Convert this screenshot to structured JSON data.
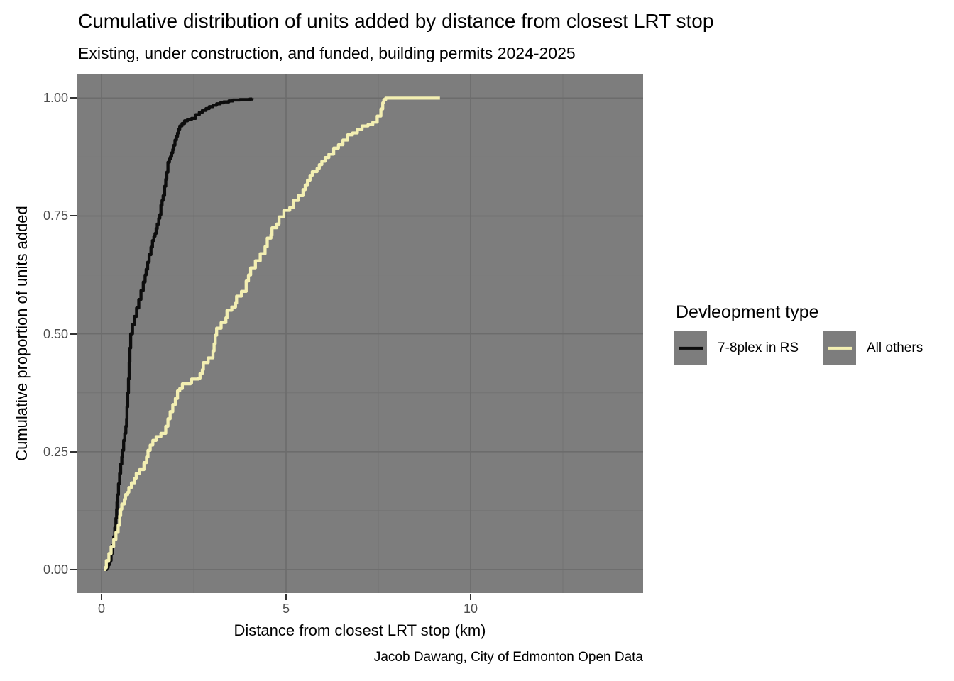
{
  "title": "Cumulative distribution of units added by distance from closest LRT stop",
  "subtitle": "Existing, under construction, and funded, building permits 2024-2025",
  "caption": "Jacob Dawang, City of Edmonton Open Data",
  "x_axis": {
    "label": "Distance from closest LRT stop (km)",
    "ticks": [
      {
        "value": 0,
        "label": "0"
      },
      {
        "value": 5,
        "label": "5"
      },
      {
        "value": 10,
        "label": "10"
      }
    ]
  },
  "y_axis": {
    "label": "Cumulative proportion of units added",
    "ticks": [
      {
        "value": 1.0,
        "label": "1.00"
      },
      {
        "value": 0.75,
        "label": "0.75"
      },
      {
        "value": 0.5,
        "label": "0.50"
      },
      {
        "value": 0.25,
        "label": "0.25"
      },
      {
        "value": 0.0,
        "label": "0.00"
      }
    ]
  },
  "legend": {
    "title": "Devleopment type",
    "items": [
      {
        "label": "7-8plex in RS",
        "color": "#0d0d0d"
      },
      {
        "label": "All others",
        "color": "#f3efb2"
      }
    ]
  },
  "colors": {
    "panel_bg": "#7d7d7d",
    "grid_major": "#6c6c6c",
    "grid_minor": "#747474",
    "axis_text": "#4d4d4d",
    "tick_mark": "#333333",
    "text": "#000000"
  },
  "chart_data": {
    "type": "line",
    "subtype": "ecdf-step",
    "title": "Cumulative distribution of units added by distance from closest LRT stop",
    "subtitle": "Existing, under construction, and funded, building permits 2024-2025",
    "xlabel": "Distance from closest LRT stop (km)",
    "ylabel": "Cumulative proportion of units added",
    "xlim": [
      -0.673,
      14.673
    ],
    "ylim": [
      -0.0498,
      1.0517
    ],
    "grid": {
      "x_major": [
        0,
        5,
        10
      ],
      "x_minor": [
        2.5,
        7.5,
        12.5
      ],
      "y_major": [
        0,
        0.25,
        0.5,
        0.75,
        1.0
      ],
      "y_minor": [
        0.125,
        0.375,
        0.625,
        0.875
      ]
    },
    "legend_position": "right",
    "series": [
      {
        "name": "7-8plex in RS",
        "color": "#0d0d0d",
        "points": [
          [
            0.1,
            0.0
          ],
          [
            0.14,
            0.004
          ],
          [
            0.18,
            0.01
          ],
          [
            0.21,
            0.019
          ],
          [
            0.26,
            0.034
          ],
          [
            0.29,
            0.051
          ],
          [
            0.33,
            0.07
          ],
          [
            0.36,
            0.089
          ],
          [
            0.39,
            0.109
          ],
          [
            0.41,
            0.128
          ],
          [
            0.42,
            0.144
          ],
          [
            0.44,
            0.159
          ],
          [
            0.46,
            0.182
          ],
          [
            0.49,
            0.204
          ],
          [
            0.52,
            0.224
          ],
          [
            0.55,
            0.239
          ],
          [
            0.57,
            0.253
          ],
          [
            0.6,
            0.274
          ],
          [
            0.63,
            0.289
          ],
          [
            0.66,
            0.304
          ],
          [
            0.68,
            0.32
          ],
          [
            0.69,
            0.345
          ],
          [
            0.71,
            0.375
          ],
          [
            0.73,
            0.405
          ],
          [
            0.75,
            0.44
          ],
          [
            0.77,
            0.47
          ],
          [
            0.79,
            0.5
          ],
          [
            0.84,
            0.52
          ],
          [
            0.89,
            0.537
          ],
          [
            0.95,
            0.555
          ],
          [
            1.01,
            0.573
          ],
          [
            1.07,
            0.592
          ],
          [
            1.13,
            0.61
          ],
          [
            1.18,
            0.625
          ],
          [
            1.21,
            0.637
          ],
          [
            1.25,
            0.652
          ],
          [
            1.29,
            0.668
          ],
          [
            1.34,
            0.684
          ],
          [
            1.38,
            0.698
          ],
          [
            1.42,
            0.707
          ],
          [
            1.45,
            0.713
          ],
          [
            1.48,
            0.723
          ],
          [
            1.51,
            0.733
          ],
          [
            1.55,
            0.745
          ],
          [
            1.58,
            0.753
          ],
          [
            1.61,
            0.773
          ],
          [
            1.64,
            0.783
          ],
          [
            1.67,
            0.793
          ],
          [
            1.71,
            0.813
          ],
          [
            1.74,
            0.828
          ],
          [
            1.77,
            0.843
          ],
          [
            1.8,
            0.864
          ],
          [
            1.84,
            0.871
          ],
          [
            1.87,
            0.876
          ],
          [
            1.9,
            0.884
          ],
          [
            1.93,
            0.891
          ],
          [
            1.96,
            0.9
          ],
          [
            1.99,
            0.911
          ],
          [
            2.03,
            0.919
          ],
          [
            2.06,
            0.926
          ],
          [
            2.09,
            0.934
          ],
          [
            2.12,
            0.941
          ],
          [
            2.18,
            0.946
          ],
          [
            2.25,
            0.952
          ],
          [
            2.33,
            0.955
          ],
          [
            2.44,
            0.957
          ],
          [
            2.55,
            0.965
          ],
          [
            2.65,
            0.97
          ],
          [
            2.73,
            0.974
          ],
          [
            2.83,
            0.978
          ],
          [
            2.92,
            0.982
          ],
          [
            3.02,
            0.985
          ],
          [
            3.12,
            0.988
          ],
          [
            3.22,
            0.99
          ],
          [
            3.31,
            0.992
          ],
          [
            3.45,
            0.994
          ],
          [
            3.56,
            0.996
          ],
          [
            3.75,
            0.997
          ],
          [
            4.02,
            0.998
          ],
          [
            4.08,
            1.0
          ]
        ]
      },
      {
        "name": "All others",
        "color": "#f3efb2",
        "points": [
          [
            0.07,
            0.0
          ],
          [
            0.1,
            0.004
          ],
          [
            0.13,
            0.019
          ],
          [
            0.2,
            0.034
          ],
          [
            0.26,
            0.049
          ],
          [
            0.33,
            0.064
          ],
          [
            0.39,
            0.079
          ],
          [
            0.45,
            0.094
          ],
          [
            0.49,
            0.114
          ],
          [
            0.52,
            0.128
          ],
          [
            0.55,
            0.139
          ],
          [
            0.62,
            0.149
          ],
          [
            0.65,
            0.159
          ],
          [
            0.71,
            0.164
          ],
          [
            0.74,
            0.174
          ],
          [
            0.81,
            0.184
          ],
          [
            0.9,
            0.194
          ],
          [
            0.94,
            0.204
          ],
          [
            1.03,
            0.212
          ],
          [
            1.15,
            0.227
          ],
          [
            1.22,
            0.239
          ],
          [
            1.26,
            0.253
          ],
          [
            1.32,
            0.264
          ],
          [
            1.39,
            0.274
          ],
          [
            1.48,
            0.282
          ],
          [
            1.61,
            0.289
          ],
          [
            1.74,
            0.304
          ],
          [
            1.8,
            0.32
          ],
          [
            1.86,
            0.335
          ],
          [
            1.93,
            0.35
          ],
          [
            2.0,
            0.363
          ],
          [
            2.06,
            0.379
          ],
          [
            2.12,
            0.384
          ],
          [
            2.19,
            0.394
          ],
          [
            2.41,
            0.396
          ],
          [
            2.44,
            0.404
          ],
          [
            2.63,
            0.406
          ],
          [
            2.67,
            0.416
          ],
          [
            2.73,
            0.424
          ],
          [
            2.76,
            0.439
          ],
          [
            2.89,
            0.449
          ],
          [
            3.02,
            0.464
          ],
          [
            3.05,
            0.479
          ],
          [
            3.08,
            0.497
          ],
          [
            3.12,
            0.512
          ],
          [
            3.24,
            0.524
          ],
          [
            3.37,
            0.534
          ],
          [
            3.4,
            0.55
          ],
          [
            3.53,
            0.557
          ],
          [
            3.63,
            0.565
          ],
          [
            3.66,
            0.58
          ],
          [
            3.79,
            0.59
          ],
          [
            3.92,
            0.612
          ],
          [
            3.98,
            0.625
          ],
          [
            4.04,
            0.64
          ],
          [
            4.17,
            0.655
          ],
          [
            4.3,
            0.67
          ],
          [
            4.43,
            0.685
          ],
          [
            4.49,
            0.703
          ],
          [
            4.59,
            0.71
          ],
          [
            4.62,
            0.725
          ],
          [
            4.75,
            0.733
          ],
          [
            4.81,
            0.748
          ],
          [
            4.94,
            0.762
          ],
          [
            5.1,
            0.768
          ],
          [
            5.2,
            0.783
          ],
          [
            5.33,
            0.793
          ],
          [
            5.46,
            0.806
          ],
          [
            5.52,
            0.816
          ],
          [
            5.58,
            0.826
          ],
          [
            5.65,
            0.836
          ],
          [
            5.71,
            0.844
          ],
          [
            5.84,
            0.851
          ],
          [
            5.9,
            0.859
          ],
          [
            5.97,
            0.866
          ],
          [
            6.06,
            0.874
          ],
          [
            6.16,
            0.881
          ],
          [
            6.29,
            0.894
          ],
          [
            6.42,
            0.901
          ],
          [
            6.54,
            0.911
          ],
          [
            6.67,
            0.922
          ],
          [
            6.8,
            0.926
          ],
          [
            6.93,
            0.934
          ],
          [
            7.06,
            0.941
          ],
          [
            7.22,
            0.944
          ],
          [
            7.35,
            0.949
          ],
          [
            7.47,
            0.962
          ],
          [
            7.57,
            0.977
          ],
          [
            7.62,
            0.99
          ],
          [
            7.65,
            0.997
          ],
          [
            7.7,
            1.0
          ],
          [
            9.17,
            1.0
          ]
        ]
      }
    ]
  }
}
